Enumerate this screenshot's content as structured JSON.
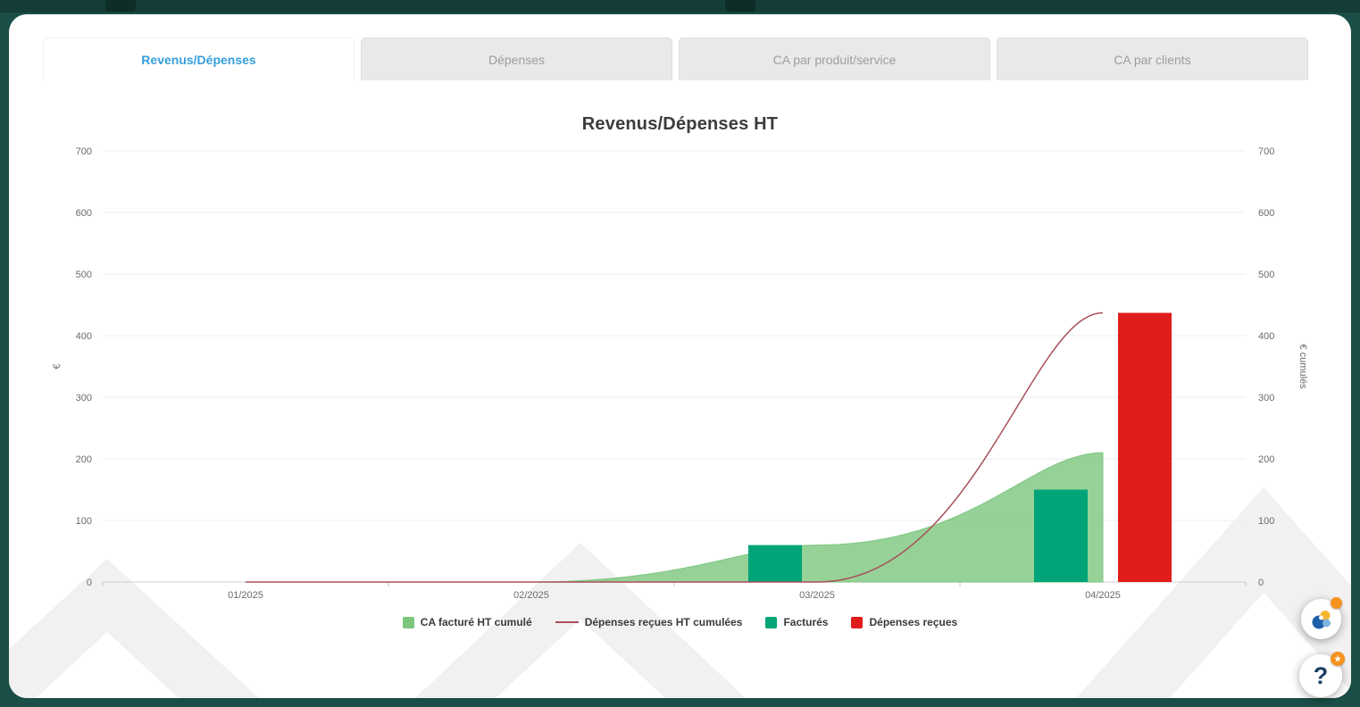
{
  "theme": {
    "frame_background": "#1b4e46",
    "card_background": "#ffffff",
    "active_tab_text": "#36a0dc",
    "inactive_tab_text": "#9d9d9d",
    "grid_color": "#ececec",
    "axis_text_color": "#6b6b6b",
    "legend_text_color": "#3a3a3a",
    "badge_color": "#f6921e"
  },
  "tabs": [
    {
      "id": "revenus-depenses",
      "label": "Revenus/Dépenses",
      "active": true
    },
    {
      "id": "depenses",
      "label": "Dépenses",
      "active": false
    },
    {
      "id": "ca-par-produit-service",
      "label": "CA par produit/service",
      "active": false
    },
    {
      "id": "ca-par-clients",
      "label": "CA par clients",
      "active": false
    }
  ],
  "chart_data": {
    "type": "mixed",
    "title": "Revenus/Dépenses HT",
    "categories": [
      "01/2025",
      "02/2025",
      "03/2025",
      "04/2025"
    ],
    "series": [
      {
        "name": "CA facturé HT cumulé",
        "kind": "area",
        "color": "#7cc67e",
        "values": [
          0,
          0,
          60,
          210
        ]
      },
      {
        "name": "Dépenses reçues HT cumulées",
        "kind": "line",
        "color": "#a8505a",
        "values": [
          0,
          0,
          0,
          437
        ]
      },
      {
        "name": "Facturés",
        "kind": "bar",
        "color": "#00a478",
        "values": [
          0,
          0,
          60,
          150
        ]
      },
      {
        "name": "Dépenses reçues",
        "kind": "bar",
        "color": "#e11c1c",
        "values": [
          0,
          0,
          0,
          437
        ]
      }
    ],
    "ylabel_left": "€",
    "ylabel_right": "€ cumulés",
    "ylim": [
      0,
      700
    ],
    "yticks": [
      0,
      100,
      200,
      300,
      400,
      500,
      600,
      700
    ],
    "grid": true,
    "legend_position": "bottom"
  },
  "floating": {
    "help_label": "?",
    "help_badge_icon": "★"
  }
}
